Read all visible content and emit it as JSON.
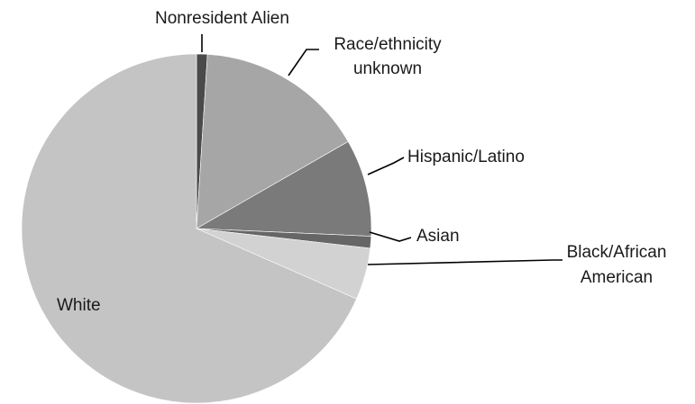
{
  "chart_data": {
    "type": "pie",
    "title": "",
    "legend": "none",
    "start_angle_deg": 0,
    "direction": "clockwise",
    "slices": [
      {
        "label": "Nonresident Alien",
        "value": 1.0,
        "color": "#4a4a4a"
      },
      {
        "label": "Race/ethnicity unknown",
        "value": 15.7,
        "color": "#a6a6a6"
      },
      {
        "label": "Hispanic/Latino",
        "value": 9.0,
        "color": "#7a7a7a"
      },
      {
        "label": "Asian",
        "value": 1.1,
        "color": "#666666"
      },
      {
        "label": "Black/African American",
        "value": 4.8,
        "color": "#d2d2d2"
      },
      {
        "label": "White",
        "value": 68.4,
        "color": "#c4c4c4"
      }
    ]
  }
}
